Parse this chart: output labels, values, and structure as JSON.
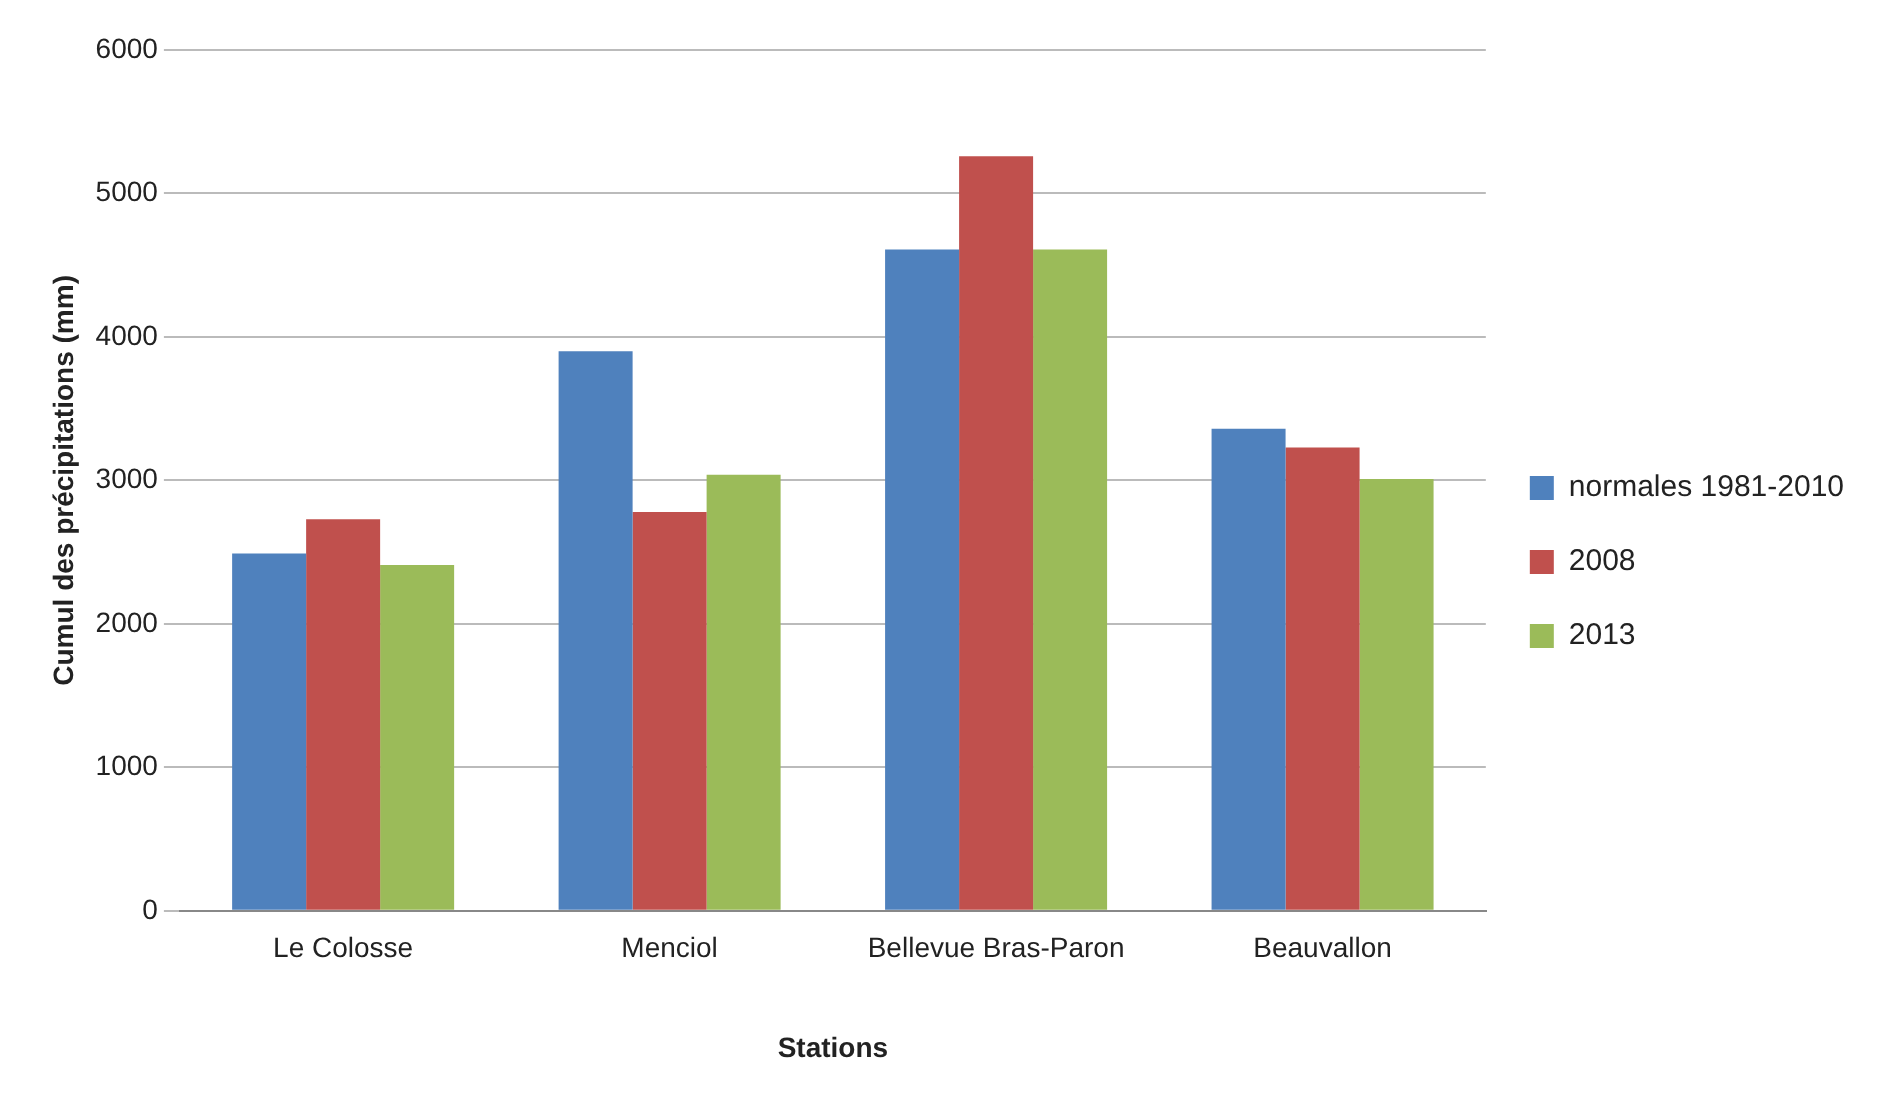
{
  "chart_data": {
    "type": "bar",
    "xlabel": "Stations",
    "ylabel": "Cumul des précipitations (mm)",
    "categories": [
      "Le Colosse",
      "Menciol",
      "Bellevue Bras-Paron",
      "Beauvallon"
    ],
    "series": [
      {
        "name": "normales 1981-2010",
        "color": "#4f81bd",
        "values": [
          2490,
          3900,
          4610,
          3360
        ]
      },
      {
        "name": "2008",
        "color": "#c0504d",
        "values": [
          2730,
          2780,
          5260,
          3230
        ]
      },
      {
        "name": "2013",
        "color": "#9bbb59",
        "values": [
          2410,
          3040,
          4610,
          3010
        ]
      }
    ],
    "ylim": [
      0,
      6000
    ],
    "yticks": [
      0,
      1000,
      2000,
      3000,
      4000,
      5000,
      6000
    ],
    "grid": "y",
    "legend": "right"
  }
}
